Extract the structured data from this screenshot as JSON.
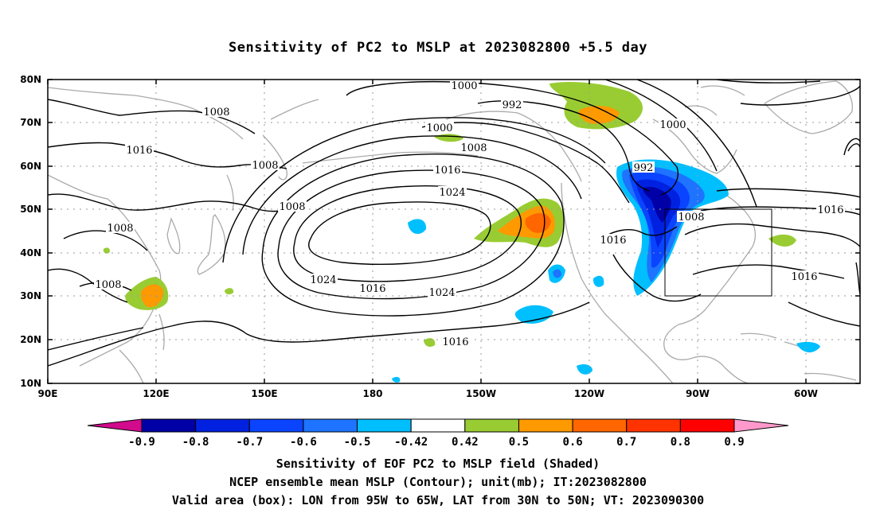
{
  "title": "Sensitivity of PC2 to MSLP at 2023082800 +5.5 day",
  "map": {
    "lat_labels": [
      "80N",
      "70N",
      "60N",
      "50N",
      "40N",
      "30N",
      "20N",
      "10N"
    ],
    "lon_labels": [
      "90E",
      "120E",
      "150E",
      "180",
      "150W",
      "120W",
      "90W",
      "60W"
    ],
    "contour_labels": [
      {
        "text": "1000"
      },
      {
        "text": "992"
      },
      {
        "text": "1008"
      },
      {
        "text": "1000"
      },
      {
        "text": "1016"
      },
      {
        "text": "1008"
      },
      {
        "text": "1008"
      },
      {
        "text": "1000"
      },
      {
        "text": "1008"
      },
      {
        "text": "1016"
      },
      {
        "text": "1024"
      },
      {
        "text": "992"
      },
      {
        "text": "1008"
      },
      {
        "text": "1016"
      },
      {
        "text": "1008"
      },
      {
        "text": "1024"
      },
      {
        "text": "1016"
      },
      {
        "text": "1024"
      },
      {
        "text": "1016"
      },
      {
        "text": "1016"
      },
      {
        "text": "1008"
      },
      {
        "text": "1016"
      }
    ],
    "box": {
      "lon_from": "95W",
      "lon_to": "65W",
      "lat_from": "30N",
      "lat_to": "50N"
    }
  },
  "colorbar": {
    "labels": [
      "-0.9",
      "-0.8",
      "-0.7",
      "-0.6",
      "-0.5",
      "-0.42",
      "0.42",
      "0.5",
      "0.6",
      "0.7",
      "0.8",
      "0.9"
    ],
    "colors": [
      "#d20a8c",
      "#0000a6",
      "#0022e0",
      "#0a44ff",
      "#1e73ff",
      "#00bfff",
      "#ffffff",
      "#99cc33",
      "#ff9900",
      "#ff6600",
      "#ff3300",
      "#ff0000",
      "#ff99cc"
    ]
  },
  "captions": {
    "line1": "Sensitivity of EOF PC2 to MSLP field (Shaded)",
    "line2": "NCEP ensemble mean MSLP (Contour); unit(mb); IT:2023082800",
    "line3": "Valid area (box): LON from 95W to 65W, LAT from 30N to 50N; VT: 2023090300"
  }
}
